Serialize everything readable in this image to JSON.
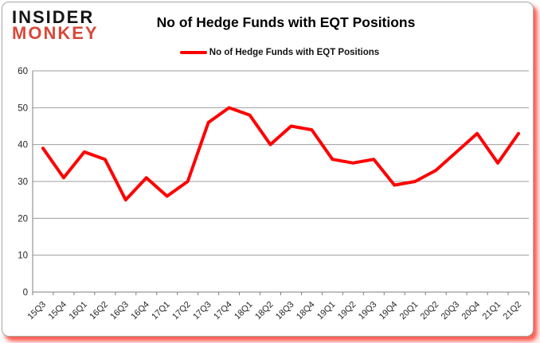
{
  "logo": {
    "line1": "INSIDER",
    "line2": "MONKEY",
    "line1_color": "#141414",
    "line2_color": "#d8493a"
  },
  "header": {
    "title": "No of Hedge Funds with EQT Positions"
  },
  "legend": {
    "label": "No of Hedge Funds with EQT Positions",
    "line_color": "#ff0000"
  },
  "chart_data": {
    "type": "line",
    "title": "No of Hedge Funds with EQT Positions",
    "categories": [
      "15Q3",
      "15Q4",
      "16Q1",
      "16Q2",
      "16Q3",
      "16Q4",
      "17Q1",
      "17Q2",
      "17Q3",
      "17Q4",
      "18Q1",
      "18Q2",
      "18Q3",
      "18Q4",
      "19Q1",
      "19Q2",
      "19Q3",
      "19Q4",
      "20Q1",
      "20Q2",
      "20Q3",
      "20Q4",
      "21Q1",
      "21Q2"
    ],
    "series": [
      {
        "name": "No of Hedge Funds with EQT Positions",
        "color": "#ff0000",
        "values": [
          39,
          31,
          38,
          36,
          25,
          31,
          26,
          30,
          46,
          50,
          48,
          40,
          45,
          44,
          36,
          35,
          36,
          29,
          30,
          33,
          38,
          43,
          35,
          43
        ]
      }
    ],
    "xlabel": "",
    "ylabel": "",
    "ylim": [
      0,
      60
    ],
    "yticks": [
      0,
      10,
      20,
      30,
      40,
      50,
      60
    ],
    "grid": true,
    "legend_position": "top",
    "gridline_color": "#9d9d9d"
  }
}
